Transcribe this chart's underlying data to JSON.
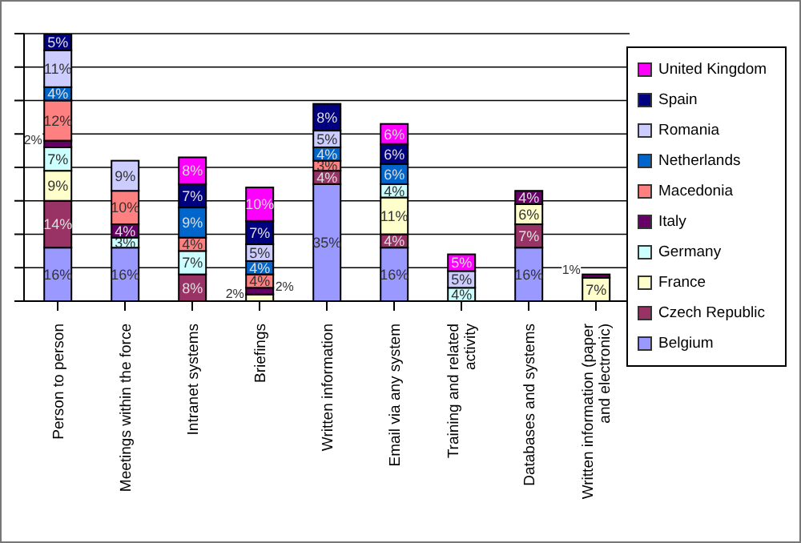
{
  "chart_data": {
    "type": "bar",
    "stacked": true,
    "categories": [
      "Person to person",
      "Meetings within the force",
      "Intranet systems",
      "Briefings",
      "Written information",
      "Email via any system",
      "Training and related activity",
      "Databases and systems",
      "Written information (paper and electronic)"
    ],
    "series": [
      {
        "name": "Belgium",
        "color": "#9999ff",
        "values": [
          16,
          16,
          null,
          null,
          35,
          16,
          null,
          16,
          null
        ],
        "value_labels": [
          "16%",
          "16%",
          null,
          null,
          "35%",
          "16%",
          null,
          "16%",
          null
        ]
      },
      {
        "name": "Czech Republic",
        "color": "#993366",
        "values": [
          14,
          null,
          8,
          null,
          4,
          4,
          null,
          7,
          null
        ],
        "value_labels": [
          "14%",
          null,
          "8%",
          null,
          "4%",
          "4%",
          null,
          "7%",
          null
        ]
      },
      {
        "name": "France",
        "color": "#ffffcc",
        "values": [
          9,
          null,
          null,
          2,
          null,
          11,
          null,
          6,
          7
        ],
        "value_labels": [
          "9%",
          null,
          null,
          "2%",
          null,
          "11%",
          null,
          "6%",
          "7%"
        ]
      },
      {
        "name": "Germany",
        "color": "#ccffff",
        "values": [
          7,
          3,
          7,
          null,
          null,
          4,
          4,
          null,
          null
        ],
        "value_labels": [
          "7%",
          "3%",
          "7%",
          null,
          null,
          "4%",
          "4%",
          null,
          null
        ]
      },
      {
        "name": "Italy",
        "color": "#660066",
        "values": [
          2,
          4,
          null,
          2,
          null,
          null,
          null,
          4,
          1
        ],
        "value_labels": [
          "2%",
          "4%",
          null,
          "2%",
          null,
          null,
          null,
          "4%",
          "1%"
        ]
      },
      {
        "name": "Macedonia",
        "color": "#ff8080",
        "values": [
          12,
          10,
          4,
          4,
          3,
          null,
          null,
          null,
          null
        ],
        "value_labels": [
          "12%",
          "10%",
          "4%",
          "4%",
          "3%",
          null,
          null,
          null,
          null
        ]
      },
      {
        "name": "Netherlands",
        "color": "#0066cc",
        "values": [
          4,
          null,
          9,
          4,
          4,
          6,
          null,
          null,
          null
        ],
        "value_labels": [
          "4%",
          null,
          "9%",
          "4%",
          "4%",
          "6%",
          null,
          null,
          null
        ]
      },
      {
        "name": "Romania",
        "color": "#ccccff",
        "values": [
          11,
          9,
          null,
          5,
          5,
          null,
          5,
          null,
          null
        ],
        "value_labels": [
          "11%",
          "9%",
          null,
          "5%",
          "5%",
          null,
          "5%",
          null,
          null
        ]
      },
      {
        "name": "Spain",
        "color": "#000080",
        "values": [
          5,
          null,
          7,
          7,
          8,
          6,
          null,
          null,
          null
        ],
        "value_labels": [
          "5%",
          null,
          "7%",
          "7%",
          "8%",
          "6%",
          null,
          null,
          null
        ]
      },
      {
        "name": "United Kingdom",
        "color": "#ff00ff",
        "values": [
          null,
          null,
          8,
          10,
          null,
          6,
          5,
          null,
          null
        ],
        "value_labels": [
          null,
          null,
          "8%",
          "10%",
          null,
          "6%",
          "5%",
          null,
          null
        ]
      }
    ],
    "ylim": [
      0,
      80
    ],
    "yticks": [
      {
        "value": 0,
        "label": null
      },
      {
        "value": 10,
        "label": null
      },
      {
        "value": 20,
        "label": null
      },
      {
        "value": 30,
        "label": null
      },
      {
        "value": 40,
        "label": null
      },
      {
        "value": 50,
        "label": null
      },
      {
        "value": 60,
        "label": null
      },
      {
        "value": 70,
        "label": null
      },
      {
        "value": 80,
        "label": null
      }
    ],
    "tick_labels": "x",
    "grid": "y",
    "legend": "right"
  }
}
